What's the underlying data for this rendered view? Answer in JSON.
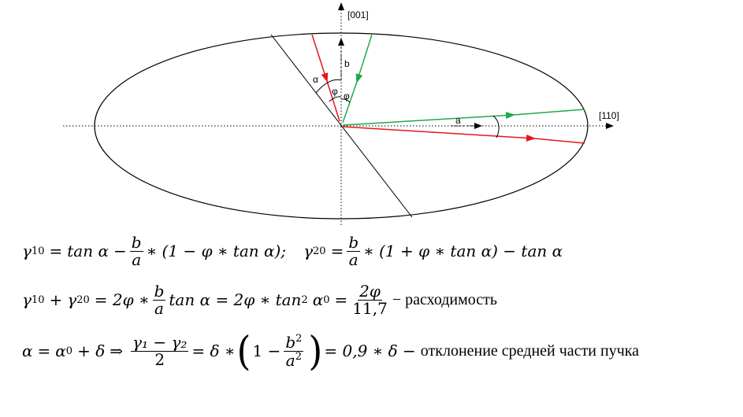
{
  "diagram": {
    "axis_vertical_label": "[001]",
    "axis_horizontal_label": "[110]",
    "label_b": "b",
    "label_a": "a",
    "label_alpha": "α",
    "label_phi_left": "φ",
    "label_phi_right": "φ",
    "colors": {
      "red": "#e8141c",
      "green": "#1faa4a",
      "line": "#000000"
    }
  },
  "equations": {
    "line1": {
      "g10": "γ",
      "g10_sub": "10",
      "eq": "=",
      "tan_alpha_1": "tan α",
      "minus": "−",
      "frac1_num": "b",
      "frac1_den": "a",
      "rest1": "∗ (1 − φ ∗ tan α);",
      "g20": "γ",
      "g20_sub": "20",
      "eq2": "=",
      "frac2_num": "b",
      "frac2_den": "a",
      "rest2": "∗ (1 + φ ∗ tan α) − tan α"
    },
    "line2": {
      "g10": "γ",
      "g10_sub": "10",
      "plus": "+",
      "g20": "γ",
      "g20_sub": "20",
      "part1": "= 2φ ∗",
      "frac1_num": "b",
      "frac1_den": "a",
      "part2": "tan α = 2φ ∗ tan",
      "sq": "2",
      "alpha0": "α",
      "alpha0_sub": "0",
      "eq": "=",
      "frac2_num": "2φ",
      "frac2_den": "11,7",
      "suffix": "− расходимость"
    },
    "line3": {
      "alpha": "α",
      "eq1": "=",
      "alpha0": "α",
      "alpha0_sub": "0",
      "plus_delta": "+ δ",
      "implies": "⇒",
      "frac1_num": "γ₁ − γ₂",
      "frac1_den": "2",
      "eq2": "= δ ∗",
      "one_minus": "1 −",
      "frac2_num_b": "b",
      "frac2_num_sup": "2",
      "frac2_den_a": "a",
      "frac2_den_sup": "2",
      "result": "= 0,9 ∗ δ −",
      "suffix": "отклонение средней части пучка"
    }
  }
}
